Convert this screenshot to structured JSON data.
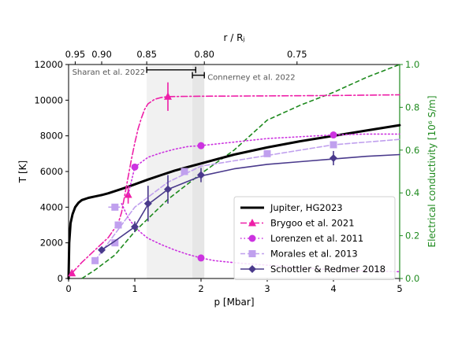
{
  "chart_data": {
    "type": "line",
    "xlabel": "p [Mbar]",
    "ylabel": "T [K]",
    "y2label": "Electrical conductivity [10⁶ S/m]",
    "top_xlabel": "r / Rⱼ",
    "xlim": [
      0,
      5
    ],
    "ylim": [
      0,
      12000
    ],
    "y2lim": [
      0,
      1.0
    ],
    "xticks": [
      0,
      1,
      2,
      3,
      4,
      5
    ],
    "yticks": [
      0,
      2000,
      4000,
      6000,
      8000,
      10000,
      12000
    ],
    "y2ticks": [
      0.0,
      0.2,
      0.4,
      0.6,
      0.8,
      1.0
    ],
    "top_ticks": [
      {
        "label": "0.95",
        "p": 0.1
      },
      {
        "label": "0.90",
        "p": 0.5
      },
      {
        "label": "0.85",
        "p": 1.18
      },
      {
        "label": "0.80",
        "p": 2.05
      },
      {
        "label": "0.75",
        "p": 3.45
      }
    ],
    "shaded_bands": [
      {
        "x": [
          1.18,
          1.87
        ],
        "opacity": 0.18
      },
      {
        "x": [
          1.87,
          2.05
        ],
        "opacity": 0.32
      }
    ],
    "interval_annotations": [
      {
        "label": "Sharan et al. 2022",
        "x": [
          1.18,
          1.92
        ],
        "y": 11700
      },
      {
        "label": "Connerney et al. 2022",
        "x": [
          1.87,
          2.05
        ],
        "y": 11400
      }
    ],
    "colors": {
      "jupiter": "#000000",
      "brygoo": "#ee1fa8",
      "lorenzen": "#cc33e0",
      "morales": "#c0a0ee",
      "schottler": "#4a3a8c",
      "conductivity": "#1e8a1e"
    },
    "series": [
      {
        "name": "Jupiter, HG2023",
        "key": "jupiter",
        "style": "solid",
        "width": 3,
        "marker": "none",
        "x": [
          0.0,
          0.01,
          0.03,
          0.06,
          0.1,
          0.15,
          0.2,
          0.3,
          0.4,
          0.5,
          0.6,
          0.7,
          0.8,
          0.9,
          1.0,
          1.2,
          1.4,
          1.6,
          1.8,
          2.0,
          2.5,
          3.0,
          3.5,
          4.0,
          4.5,
          5.0
        ],
        "y": [
          0,
          2000,
          3100,
          3600,
          4000,
          4250,
          4400,
          4520,
          4600,
          4680,
          4780,
          4900,
          5020,
          5150,
          5280,
          5550,
          5800,
          6050,
          6250,
          6450,
          6950,
          7350,
          7700,
          8000,
          8300,
          8600
        ]
      },
      {
        "name": "Brygoo et al. 2021",
        "key": "brygoo",
        "style": "dashdot",
        "width": 1.6,
        "marker": "triangle",
        "x": [
          0.05,
          0.2,
          0.4,
          0.6,
          0.75,
          0.8,
          0.85,
          0.9,
          0.95,
          1.0,
          1.05,
          1.1,
          1.15,
          1.2,
          1.3,
          1.4,
          1.5,
          2.0,
          3.0,
          4.0,
          5.0
        ],
        "y": [
          300,
          900,
          1600,
          2300,
          3100,
          3700,
          4700,
          5700,
          6700,
          7600,
          8400,
          9000,
          9500,
          9800,
          10050,
          10150,
          10200,
          10220,
          10240,
          10260,
          10300
        ],
        "markers": [
          {
            "x": 0.05,
            "y": 300
          },
          {
            "x": 0.9,
            "y": 4700,
            "err": 500
          },
          {
            "x": 1.5,
            "y": 10200,
            "err": 800
          }
        ]
      },
      {
        "name": "Lorenzen et al. 2011",
        "key": "lorenzen",
        "style": "dotted",
        "width": 1.6,
        "marker": "circle",
        "branches": [
          {
            "x": [
              0.9,
              1.0,
              1.2,
              1.4,
              1.6,
              1.8,
              2.0,
              2.5,
              3.0,
              3.5,
              4.0,
              4.5,
              5.0
            ],
            "y": [
              4700,
              6250,
              6800,
              7050,
              7250,
              7400,
              7450,
              7650,
              7850,
              7950,
              8050,
              8100,
              8100
            ]
          },
          {
            "x": [
              0.8,
              0.9,
              1.0,
              1.1,
              1.2,
              1.4,
              1.6,
              1.8,
              2.0,
              2.2,
              2.6,
              3.0,
              3.5,
              4.0,
              4.5,
              5.0
            ],
            "y": [
              4200,
              3400,
              2900,
              2550,
              2250,
              1900,
              1600,
              1350,
              1150,
              1000,
              850,
              750,
              600,
              500,
              430,
              380
            ]
          }
        ],
        "markers": [
          {
            "x": 1.0,
            "y": 6250
          },
          {
            "x": 2.0,
            "y": 7450
          },
          {
            "x": 4.0,
            "y": 8050
          },
          {
            "x": 2.0,
            "y": 1150
          }
        ]
      },
      {
        "name": "Morales et al. 2013",
        "key": "morales",
        "style": "dashed",
        "width": 1.6,
        "marker": "square",
        "x": [
          0.4,
          0.6,
          0.8,
          1.0,
          1.5,
          2.0,
          3.0,
          4.0,
          5.0
        ],
        "y": [
          1000,
          2000,
          3000,
          4000,
          5400,
          6300,
          6900,
          7500,
          7800
        ],
        "extra_line": {
          "x": [
            0.6,
            0.8
          ],
          "y": [
            4000,
            4000
          ]
        },
        "markers": [
          {
            "x": 0.4,
            "y": 1000
          },
          {
            "x": 0.7,
            "y": 2000
          },
          {
            "x": 0.75,
            "y": 3000
          },
          {
            "x": 0.7,
            "y": 4000
          },
          {
            "x": 1.75,
            "y": 6000
          },
          {
            "x": 3.0,
            "y": 7000
          },
          {
            "x": 4.0,
            "y": 7500
          }
        ]
      },
      {
        "name": "Schottler & Redmer 2018",
        "key": "schottler",
        "style": "solid",
        "width": 1.6,
        "marker": "diamond",
        "x": [
          0.5,
          0.7,
          1.0,
          1.2,
          1.5,
          2.0,
          2.5,
          3.0,
          3.5,
          4.0,
          4.5,
          5.0
        ],
        "y": [
          1600,
          2100,
          2900,
          4150,
          5000,
          5750,
          6150,
          6400,
          6550,
          6700,
          6850,
          6950
        ],
        "markers": [
          {
            "x": 0.5,
            "y": 1600
          },
          {
            "x": 1.0,
            "y": 2900,
            "err": 300
          },
          {
            "x": 1.2,
            "y": 4200,
            "err": 1000
          },
          {
            "x": 1.5,
            "y": 5000,
            "err": 800
          },
          {
            "x": 2.0,
            "y": 5800,
            "err": 400
          },
          {
            "x": 4.0,
            "y": 6750,
            "err": 400
          }
        ]
      }
    ],
    "conductivity_series": {
      "key": "conductivity",
      "style": "dashed",
      "width": 1.6,
      "x": [
        0.2,
        0.4,
        0.7,
        1.0,
        1.5,
        2.0,
        2.5,
        3.0,
        3.5,
        4.0,
        4.5,
        5.0
      ],
      "y2": [
        0.0,
        0.04,
        0.11,
        0.22,
        0.37,
        0.49,
        0.6,
        0.74,
        0.81,
        0.87,
        0.94,
        1.0
      ]
    },
    "legend": {
      "placement": "lower-right"
    }
  }
}
